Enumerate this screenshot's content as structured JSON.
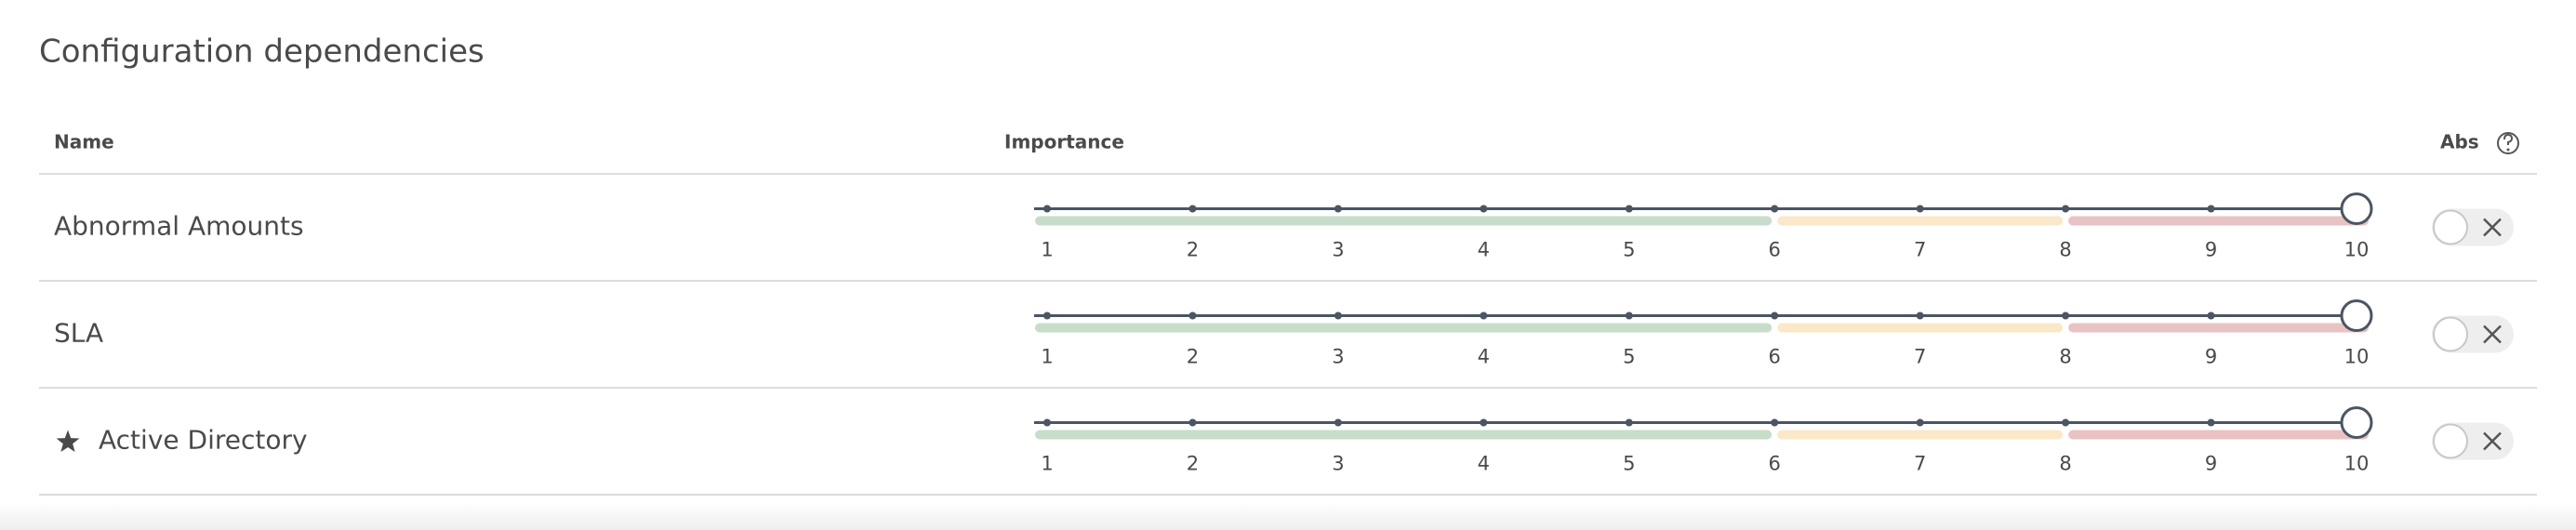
{
  "header": {
    "title": "Configuration dependencies"
  },
  "table": {
    "columns": [
      "Name",
      "Importance",
      "Abs"
    ],
    "scale": {
      "min": 1,
      "max": 10,
      "ticks": [
        1,
        2,
        3,
        4,
        5,
        6,
        7,
        8,
        9,
        10
      ],
      "bands": [
        {
          "from": 1,
          "to": 6,
          "color": "#c8dcca"
        },
        {
          "from": 6,
          "to": 8,
          "color": "#fbe8c8"
        },
        {
          "from": 8,
          "to": 10,
          "color": "#e9c3c3"
        }
      ]
    },
    "rows": [
      {
        "name": "Abnormal Amounts",
        "importance": 10,
        "starred": false,
        "abs": false
      },
      {
        "name": "SLA",
        "importance": 10,
        "starred": false,
        "abs": false
      },
      {
        "name": "Active Directory",
        "importance": 10,
        "starred": true,
        "abs": false
      }
    ]
  }
}
